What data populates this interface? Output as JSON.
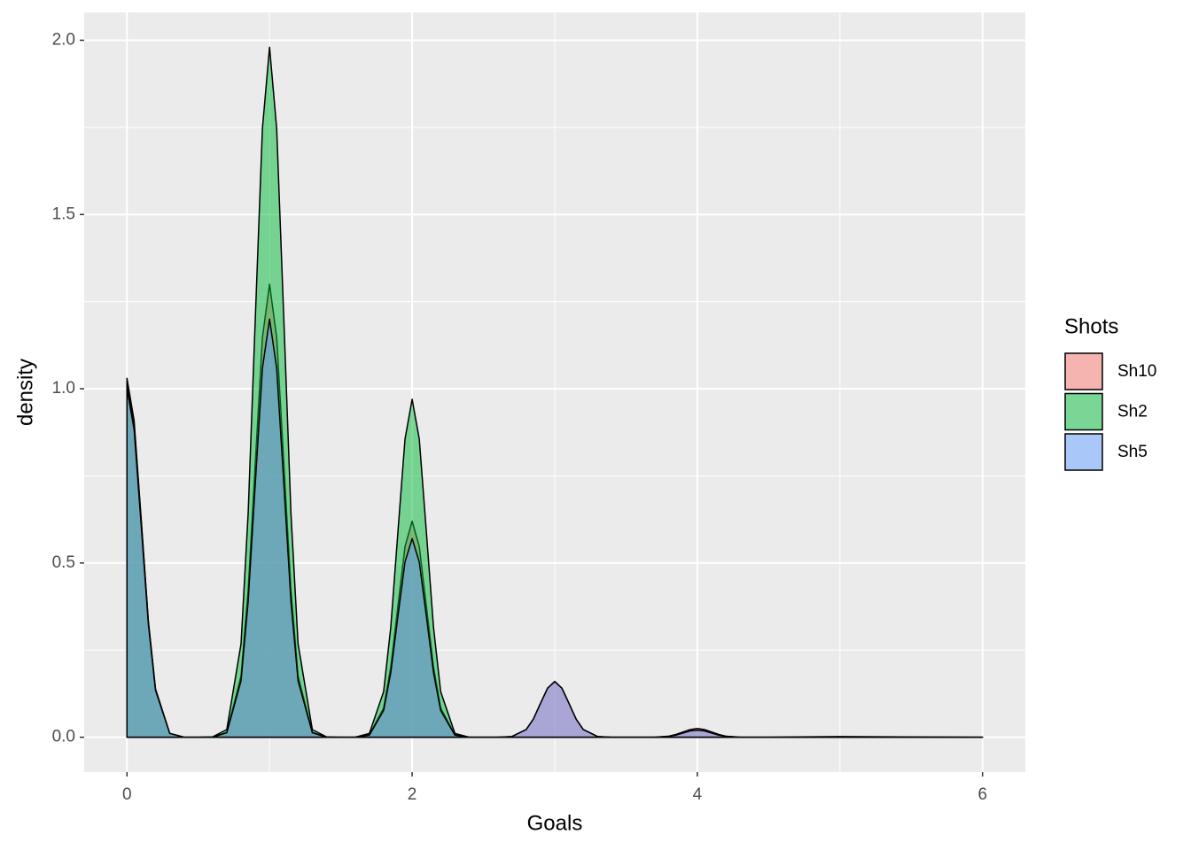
{
  "chart_data": {
    "type": "density",
    "x_label": "Goals",
    "y_label": "density",
    "legend_title": "Shots",
    "x": [
      0,
      0.05,
      0.1,
      0.15,
      0.2,
      0.3,
      0.4,
      0.5,
      0.6,
      0.7,
      0.8,
      0.85,
      0.9,
      0.95,
      1,
      1.05,
      1.1,
      1.15,
      1.2,
      1.3,
      1.4,
      1.5,
      1.6,
      1.7,
      1.8,
      1.85,
      1.9,
      1.95,
      2,
      2.05,
      2.1,
      2.15,
      2.2,
      2.3,
      2.4,
      2.5,
      2.6,
      2.7,
      2.8,
      2.85,
      2.9,
      2.95,
      3,
      3.05,
      3.1,
      3.15,
      3.2,
      3.3,
      3.4,
      3.5,
      3.6,
      3.7,
      3.8,
      3.85,
      3.9,
      3.95,
      4,
      4.05,
      4.1,
      4.15,
      4.2,
      4.3,
      4.4,
      4.5,
      5,
      6
    ],
    "series": [
      {
        "name": "Sh10",
        "color": "#F8766D",
        "values": [
          1.03,
          0.909,
          0.625,
          0.334,
          0.139,
          0.011,
          0,
          0,
          0,
          0.014,
          0.176,
          0.422,
          0.788,
          1.147,
          1.3,
          1.147,
          0.788,
          0.422,
          0.176,
          0.014,
          0,
          0,
          0,
          0.007,
          0.084,
          0.201,
          0.376,
          0.547,
          0.62,
          0.547,
          0.376,
          0.201,
          0.084,
          0.007,
          0,
          0,
          0,
          0.002,
          0.022,
          0.052,
          0.097,
          0.141,
          0.16,
          0.141,
          0.097,
          0.052,
          0.022,
          0.002,
          0,
          0,
          0,
          0,
          0.003,
          0.008,
          0.015,
          0.022,
          0.025,
          0.022,
          0.015,
          0.008,
          0.003,
          0,
          0,
          0,
          0.002,
          0
        ]
      },
      {
        "name": "Sh2",
        "color": "#00BA38",
        "values": [
          1.02,
          0.9,
          0.619,
          0.331,
          0.138,
          0.011,
          0,
          0,
          0.001,
          0.022,
          0.268,
          0.643,
          1.201,
          1.747,
          1.98,
          1.747,
          1.201,
          0.643,
          0.268,
          0.022,
          0.001,
          0,
          0,
          0.011,
          0.131,
          0.315,
          0.588,
          0.856,
          0.97,
          0.856,
          0.588,
          0.315,
          0.131,
          0.011,
          0,
          0,
          0,
          0,
          0,
          0,
          0,
          0,
          0,
          0,
          0,
          0,
          0,
          0,
          0,
          0,
          0,
          0,
          0,
          0,
          0,
          0,
          0,
          0,
          0,
          0,
          0,
          0,
          0,
          0,
          0,
          0
        ]
      },
      {
        "name": "Sh5",
        "color": "#619CFF",
        "values": [
          1.0,
          0.883,
          0.607,
          0.325,
          0.135,
          0.011,
          0,
          0,
          0,
          0.013,
          0.162,
          0.39,
          0.728,
          1.059,
          1.2,
          1.059,
          0.728,
          0.39,
          0.162,
          0.013,
          0,
          0,
          0,
          0.006,
          0.077,
          0.185,
          0.346,
          0.503,
          0.57,
          0.503,
          0.346,
          0.185,
          0.077,
          0.006,
          0,
          0,
          0,
          0.002,
          0.022,
          0.052,
          0.097,
          0.141,
          0.16,
          0.141,
          0.097,
          0.052,
          0.022,
          0.002,
          0,
          0,
          0,
          0,
          0.003,
          0.006,
          0.012,
          0.018,
          0.02,
          0.018,
          0.012,
          0.006,
          0.003,
          0,
          0,
          0,
          0,
          0
        ]
      }
    ],
    "fill_opacity": 0.5,
    "xlim": [
      -0.3,
      6.3
    ],
    "xticks": [
      0,
      2,
      4,
      6
    ],
    "ylim": [
      -0.1,
      2.08
    ],
    "yticks": [
      {
        "value": 0,
        "label": "0.0"
      },
      {
        "value": 0.5,
        "label": "0.5"
      },
      {
        "value": 1,
        "label": "1.0"
      },
      {
        "value": 1.5,
        "label": "1.5"
      },
      {
        "value": 2,
        "label": "2.0"
      }
    ],
    "grid": true,
    "legend_position": "right"
  }
}
